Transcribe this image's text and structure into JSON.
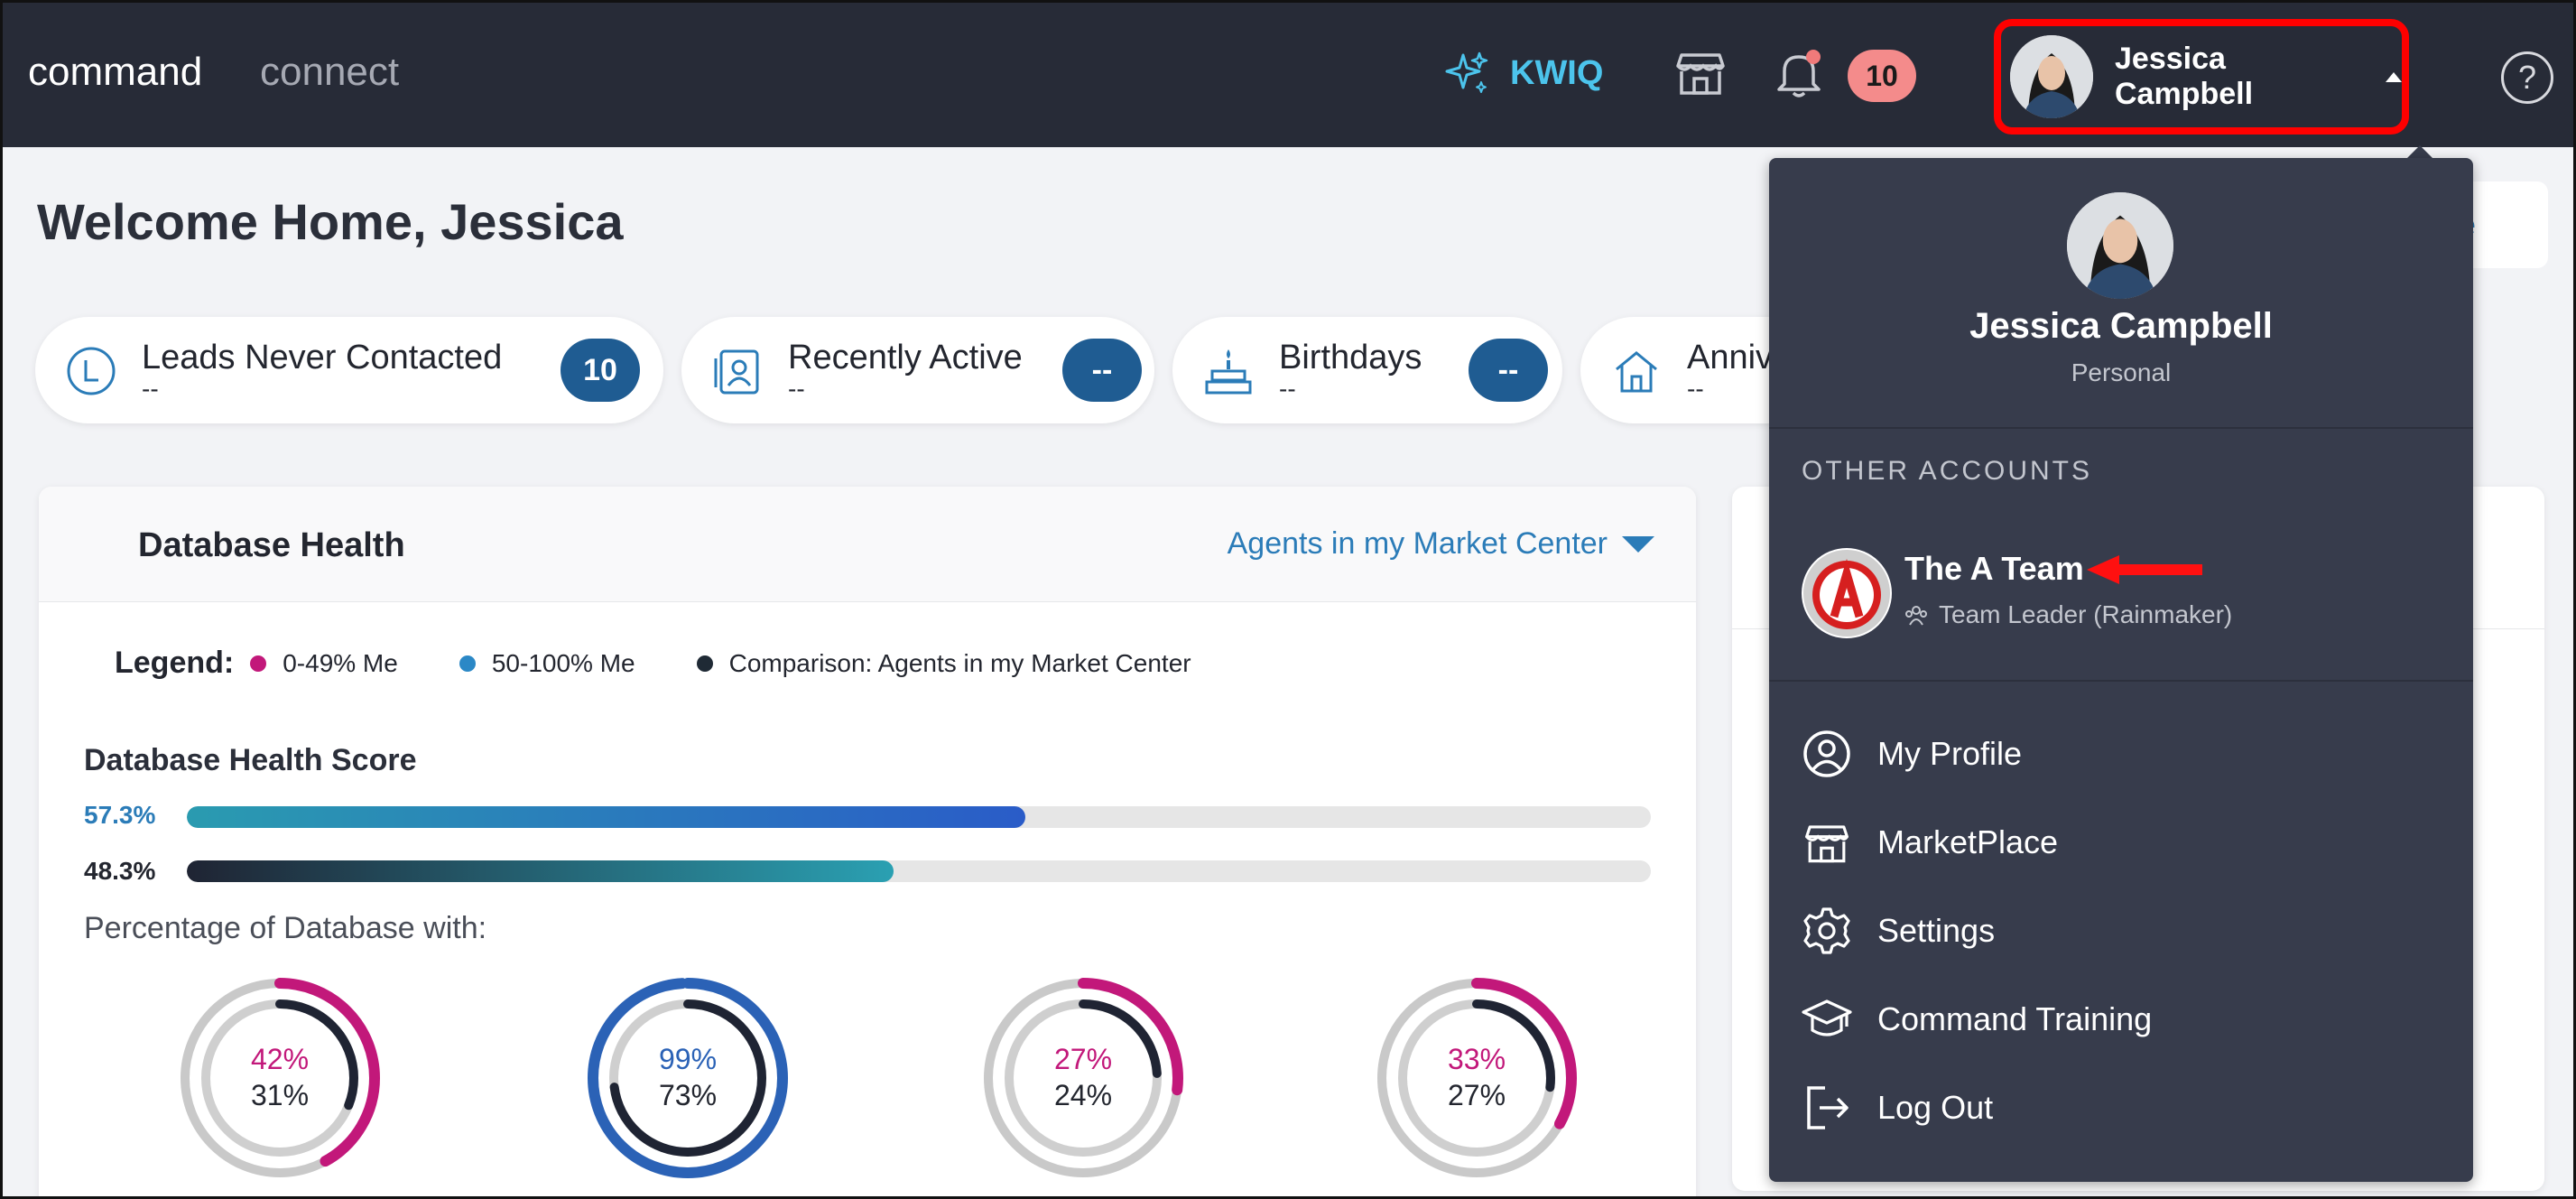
{
  "topbar": {
    "brand_primary": "command",
    "brand_secondary": "connect",
    "kwiq_label": "KWIQ",
    "notifications_count": "10",
    "user_name": "Jessica Campbell",
    "help_label": "?"
  },
  "main": {
    "welcome": "Welcome Home, Jessica",
    "peek_button_text": "ze",
    "pills": [
      {
        "title": "Leads Never Contacted",
        "sub": "--",
        "badge": "10"
      },
      {
        "title": "Recently Active",
        "sub": "--",
        "badge": "--"
      },
      {
        "title": "Birthdays",
        "sub": "--",
        "badge": "--"
      },
      {
        "title": "Anniv",
        "sub": "--",
        "badge": ""
      }
    ]
  },
  "database_health": {
    "title": "Database Health",
    "filter_label": "Agents in my Market Center",
    "legend_title": "Legend:",
    "legend": [
      {
        "label": "0-49% Me",
        "color": "#c2187a"
      },
      {
        "label": "50-100% Me",
        "color": "#2b88c6"
      },
      {
        "label": "Comparison: Agents in my Market Center",
        "color": "#1f2a35"
      }
    ],
    "score_title": "Database Health Score",
    "bars": [
      {
        "label": "57.3%",
        "value": 57.3
      },
      {
        "label": "48.3%",
        "value": 48.3
      }
    ],
    "pct_title": "Percentage of Database with:",
    "donuts": [
      {
        "me": "42%",
        "comp": "31%",
        "me_value": 42,
        "comp_value": 31,
        "me_color": "#c2187a"
      },
      {
        "me": "99%",
        "comp": "73%",
        "me_value": 99,
        "comp_value": 73,
        "me_color": "#2b62b6"
      },
      {
        "me": "27%",
        "comp": "24%",
        "me_value": 27,
        "comp_value": 24,
        "me_color": "#c2187a"
      },
      {
        "me": "33%",
        "comp": "27%",
        "me_value": 33,
        "comp_value": 27,
        "me_color": "#c2187a"
      }
    ]
  },
  "dropdown": {
    "name": "Jessica Campbell",
    "role": "Personal",
    "section_title": "OTHER ACCOUNTS",
    "account": {
      "name": "The A Team",
      "role": "Team Leader (Rainmaker)",
      "logo_letter": "A"
    },
    "menu": [
      {
        "label": "My Profile",
        "icon": "user-circle-icon"
      },
      {
        "label": "MarketPlace",
        "icon": "store-icon"
      },
      {
        "label": "Settings",
        "icon": "gear-icon"
      },
      {
        "label": "Command Training",
        "icon": "graduation-cap-icon"
      },
      {
        "label": "Log Out",
        "icon": "logout-icon"
      }
    ]
  },
  "colors": {
    "topbar": "#272b37",
    "dropdown": "#373c4c",
    "accent": "#2b7cb8",
    "highlight": "#ff0000"
  }
}
